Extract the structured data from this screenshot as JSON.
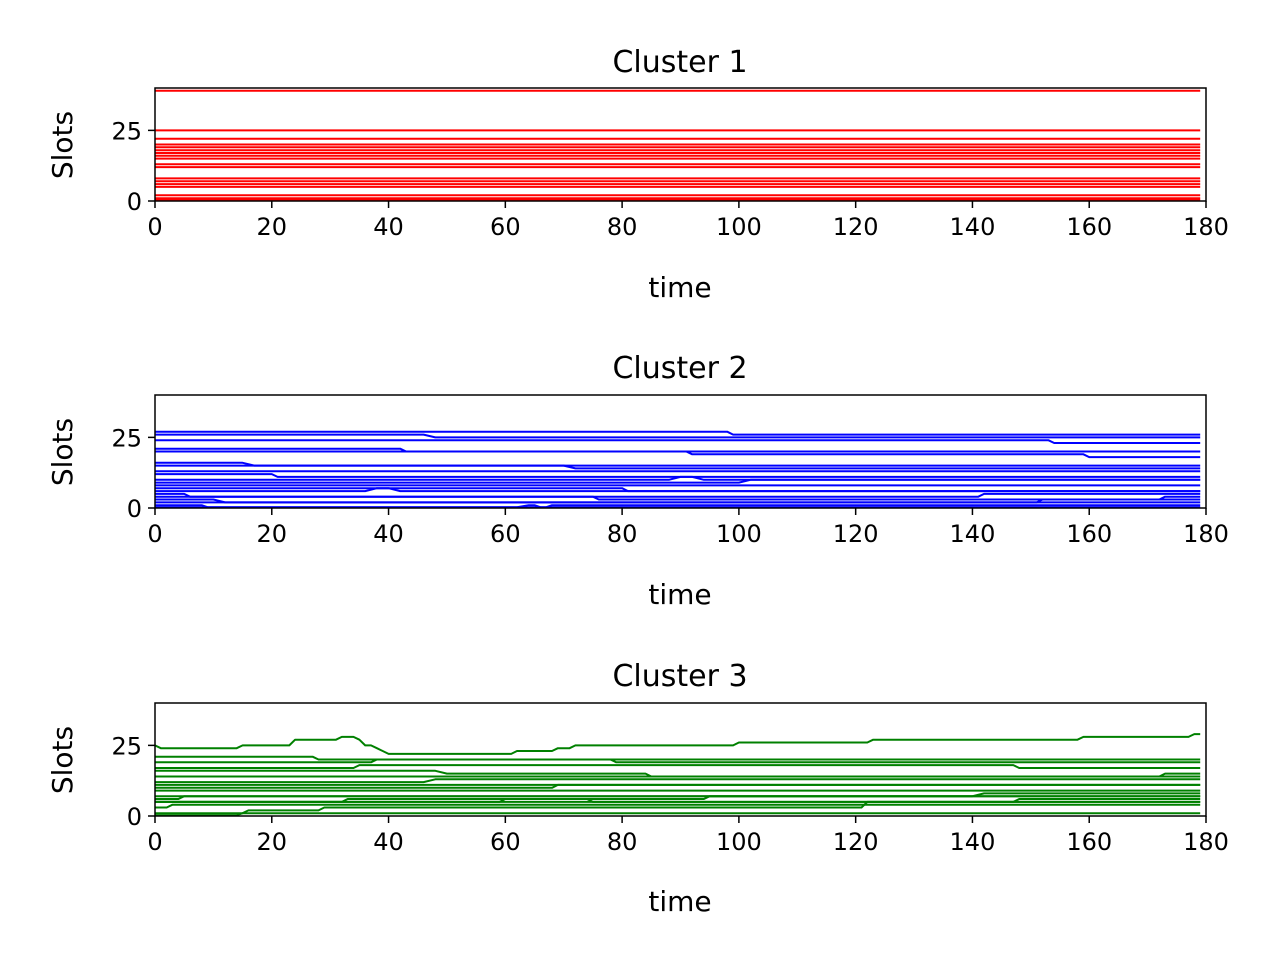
{
  "chart_data": [
    {
      "type": "line",
      "title": "Cluster 1",
      "xlabel": "time",
      "ylabel": "Slots",
      "xlim": [
        0,
        180
      ],
      "ylim": [
        0,
        40
      ],
      "xticks": [
        0,
        20,
        40,
        60,
        80,
        100,
        120,
        140,
        160,
        180
      ],
      "yticks": [
        0,
        25
      ],
      "grid": false,
      "legend": "none",
      "color": "#ff0000",
      "series": [
        {
          "x": [
            0,
            179
          ],
          "y": [
            39,
            39
          ]
        },
        {
          "x": [
            0,
            179
          ],
          "y": [
            25,
            25
          ]
        },
        {
          "x": [
            0,
            179
          ],
          "y": [
            22,
            22
          ]
        },
        {
          "x": [
            0,
            179
          ],
          "y": [
            20,
            20
          ]
        },
        {
          "x": [
            0,
            179
          ],
          "y": [
            19,
            19
          ]
        },
        {
          "x": [
            0,
            179
          ],
          "y": [
            18,
            18
          ]
        },
        {
          "x": [
            0,
            179
          ],
          "y": [
            17,
            17
          ]
        },
        {
          "x": [
            0,
            179
          ],
          "y": [
            16,
            16
          ]
        },
        {
          "x": [
            0,
            179
          ],
          "y": [
            15,
            15
          ]
        },
        {
          "x": [
            0,
            179
          ],
          "y": [
            13,
            13
          ]
        },
        {
          "x": [
            0,
            179
          ],
          "y": [
            12,
            12
          ]
        },
        {
          "x": [
            0,
            179
          ],
          "y": [
            8,
            8
          ]
        },
        {
          "x": [
            0,
            179
          ],
          "y": [
            7,
            7
          ]
        },
        {
          "x": [
            0,
            179
          ],
          "y": [
            6,
            6
          ]
        },
        {
          "x": [
            0,
            179
          ],
          "y": [
            5,
            5
          ]
        },
        {
          "x": [
            0,
            179
          ],
          "y": [
            2,
            2
          ]
        },
        {
          "x": [
            0,
            179
          ],
          "y": [
            1,
            1
          ]
        },
        {
          "x": [
            0,
            179
          ],
          "y": [
            0.4,
            0.4
          ]
        }
      ]
    },
    {
      "type": "line",
      "title": "Cluster 2",
      "xlabel": "time",
      "ylabel": "Slots",
      "xlim": [
        0,
        180
      ],
      "ylim": [
        0,
        40
      ],
      "xticks": [
        0,
        20,
        40,
        60,
        80,
        100,
        120,
        140,
        160,
        180
      ],
      "yticks": [
        0,
        25
      ],
      "grid": false,
      "legend": "none",
      "color": "#0000ff",
      "series": [
        {
          "x": [
            0,
            98,
            99,
            179
          ],
          "y": [
            27,
            27,
            26,
            26
          ]
        },
        {
          "x": [
            0,
            46,
            48,
            179
          ],
          "y": [
            26,
            26,
            25,
            25
          ]
        },
        {
          "x": [
            0,
            153,
            154,
            179
          ],
          "y": [
            24,
            24,
            23,
            23
          ]
        },
        {
          "x": [
            0,
            42,
            43,
            179
          ],
          "y": [
            21,
            21,
            20,
            20
          ]
        },
        {
          "x": [
            0,
            91,
            92,
            159,
            160,
            179
          ],
          "y": [
            20,
            20,
            19,
            19,
            18,
            18
          ]
        },
        {
          "x": [
            0,
            15,
            17,
            179
          ],
          "y": [
            16,
            16,
            15,
            15
          ]
        },
        {
          "x": [
            0,
            70,
            72,
            179
          ],
          "y": [
            15,
            15,
            14,
            14
          ]
        },
        {
          "x": [
            0,
            179
          ],
          "y": [
            13,
            13
          ]
        },
        {
          "x": [
            0,
            20,
            21,
            179
          ],
          "y": [
            12,
            12,
            11,
            11
          ]
        },
        {
          "x": [
            0,
            88,
            90,
            92,
            94,
            179
          ],
          "y": [
            10,
            10,
            11,
            11,
            10,
            10
          ]
        },
        {
          "x": [
            0,
            100,
            102,
            179
          ],
          "y": [
            9,
            9,
            10,
            10
          ]
        },
        {
          "x": [
            0,
            179
          ],
          "y": [
            8,
            8
          ]
        },
        {
          "x": [
            0,
            80,
            81,
            179
          ],
          "y": [
            7,
            7,
            6,
            6
          ]
        },
        {
          "x": [
            0,
            36,
            38,
            40,
            42,
            179
          ],
          "y": [
            6,
            6,
            7,
            7,
            6,
            6
          ]
        },
        {
          "x": [
            0,
            5,
            6,
            141,
            142,
            179
          ],
          "y": [
            5,
            5,
            4,
            4,
            5,
            5
          ]
        },
        {
          "x": [
            0,
            75,
            76,
            172,
            173,
            179
          ],
          "y": [
            4,
            4,
            3,
            3,
            4,
            4
          ]
        },
        {
          "x": [
            0,
            151,
            152,
            179
          ],
          "y": [
            2,
            2,
            3,
            3
          ]
        },
        {
          "x": [
            0,
            10,
            12,
            179
          ],
          "y": [
            3,
            3,
            2,
            2
          ]
        },
        {
          "x": [
            0,
            8,
            9,
            62,
            64,
            65,
            66,
            67,
            68,
            179
          ],
          "y": [
            1,
            1,
            0.3,
            0.3,
            1,
            1,
            0.3,
            0.3,
            1,
            1
          ]
        },
        {
          "x": [
            0,
            52,
            53,
            179
          ],
          "y": [
            0.3,
            0.3,
            0.3,
            0.3
          ]
        }
      ]
    },
    {
      "type": "line",
      "title": "Cluster 3",
      "xlabel": "time",
      "ylabel": "Slots",
      "xlim": [
        0,
        180
      ],
      "ylim": [
        0,
        40
      ],
      "xticks": [
        0,
        20,
        40,
        60,
        80,
        100,
        120,
        140,
        160,
        180
      ],
      "yticks": [
        0,
        25
      ],
      "grid": false,
      "legend": "none",
      "color": "#008000",
      "series": [
        {
          "x": [
            0,
            1,
            14,
            15,
            23,
            24,
            31,
            32,
            34,
            35,
            36,
            37,
            38,
            40,
            61,
            62,
            68,
            69,
            71,
            72,
            99,
            100,
            122,
            123,
            158,
            159,
            177,
            178,
            179
          ],
          "y": [
            25,
            24,
            24,
            25,
            25,
            27,
            27,
            28,
            28,
            27,
            25,
            25,
            24,
            22,
            22,
            23,
            23,
            24,
            24,
            25,
            25,
            26,
            26,
            27,
            27,
            28,
            28,
            29,
            29
          ]
        },
        {
          "x": [
            0,
            27,
            28,
            179
          ],
          "y": [
            21,
            21,
            20,
            20
          ]
        },
        {
          "x": [
            0,
            37,
            38,
            78,
            79,
            179
          ],
          "y": [
            19,
            19,
            20,
            20,
            19,
            19
          ]
        },
        {
          "x": [
            0,
            34,
            35,
            147,
            148,
            179
          ],
          "y": [
            17,
            17,
            18,
            18,
            17,
            17
          ]
        },
        {
          "x": [
            0,
            48,
            50,
            84,
            85,
            172,
            173,
            179
          ],
          "y": [
            16,
            16,
            15,
            15,
            14,
            14,
            15,
            15
          ]
        },
        {
          "x": [
            0,
            179
          ],
          "y": [
            14,
            14
          ]
        },
        {
          "x": [
            0,
            46,
            48,
            179
          ],
          "y": [
            12,
            12,
            13,
            13
          ]
        },
        {
          "x": [
            0,
            179
          ],
          "y": [
            11,
            11
          ]
        },
        {
          "x": [
            0,
            68,
            69,
            179
          ],
          "y": [
            10,
            10,
            11,
            11
          ]
        },
        {
          "x": [
            0,
            179
          ],
          "y": [
            9,
            9
          ]
        },
        {
          "x": [
            0,
            140,
            142,
            179
          ],
          "y": [
            7,
            7,
            8,
            8
          ]
        },
        {
          "x": [
            0,
            4,
            5,
            179
          ],
          "y": [
            6,
            6,
            7,
            7
          ]
        },
        {
          "x": [
            0,
            147,
            148,
            179
          ],
          "y": [
            5,
            5,
            6,
            6
          ]
        },
        {
          "x": [
            0,
            59,
            60,
            94,
            95,
            179
          ],
          "y": [
            5,
            5,
            6,
            6,
            7,
            7
          ]
        },
        {
          "x": [
            0,
            32,
            33,
            74,
            75,
            179
          ],
          "y": [
            5,
            5,
            6,
            6,
            5,
            5
          ]
        },
        {
          "x": [
            0,
            2,
            3,
            179
          ],
          "y": [
            3,
            3,
            4,
            4
          ]
        },
        {
          "x": [
            0,
            15,
            16,
            28,
            29,
            121,
            122,
            179
          ],
          "y": [
            1,
            1,
            2,
            2,
            3,
            3,
            5,
            5
          ]
        },
        {
          "x": [
            0,
            14,
            15,
            179
          ],
          "y": [
            0.3,
            0.3,
            1,
            1
          ]
        }
      ]
    }
  ]
}
